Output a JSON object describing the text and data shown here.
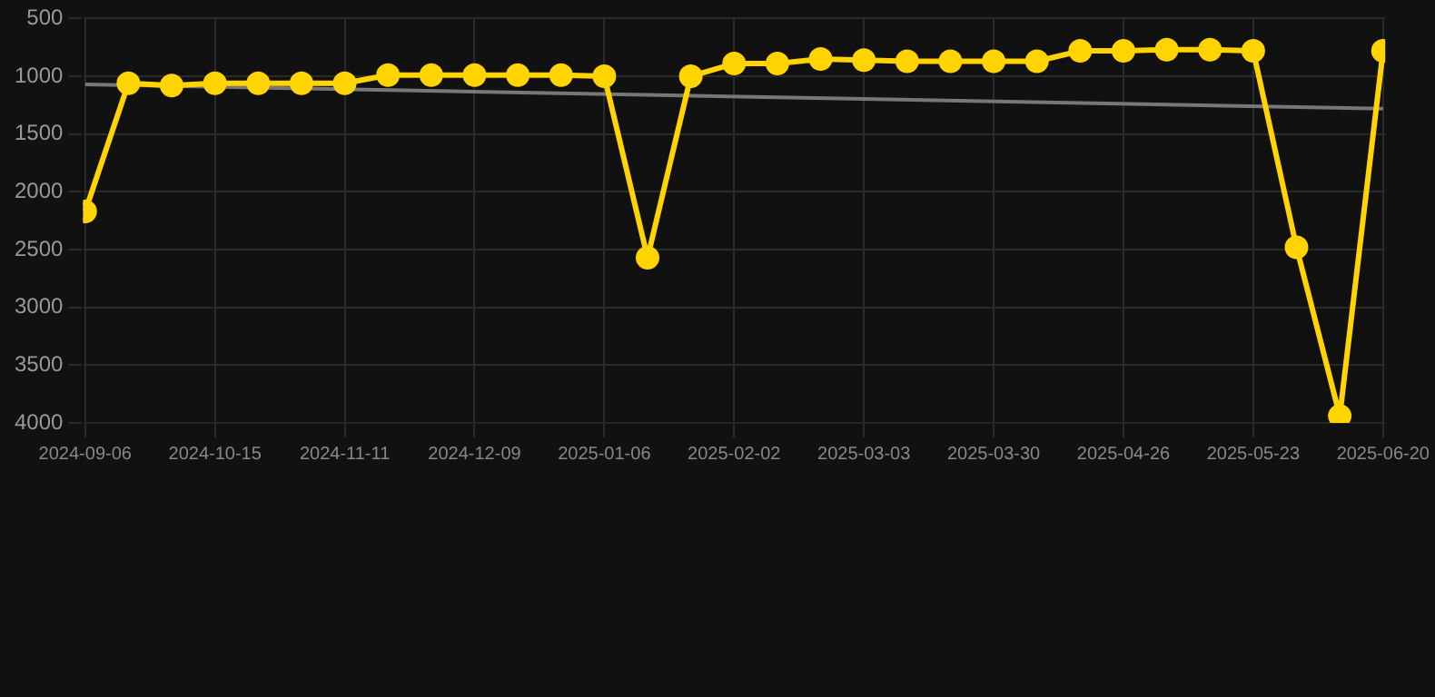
{
  "chart_data": {
    "type": "line",
    "categories": [
      "2024-09-06",
      null,
      null,
      "2024-10-15",
      null,
      null,
      "2024-11-11",
      null,
      null,
      "2024-12-09",
      null,
      null,
      "2025-01-06",
      null,
      null,
      "2025-02-02",
      null,
      null,
      "2025-03-03",
      null,
      null,
      "2025-03-30",
      null,
      null,
      "2025-04-26",
      null,
      null,
      "2025-05-23",
      null,
      null,
      "2025-06-20"
    ],
    "series": [
      {
        "color": "#ffd400",
        "marker": "circle",
        "values": [
          2170,
          1060,
          1080,
          1060,
          1060,
          1060,
          1060,
          990,
          990,
          990,
          990,
          990,
          1000,
          2570,
          1000,
          890,
          890,
          850,
          860,
          870,
          870,
          870,
          870,
          780,
          780,
          770,
          770,
          780,
          2480,
          3940,
          780
        ]
      },
      {
        "type": "line",
        "color": "#777777",
        "marker": "none",
        "values": [
          1070,
          null,
          null,
          null,
          null,
          null,
          null,
          null,
          null,
          null,
          null,
          null,
          null,
          null,
          null,
          null,
          null,
          null,
          null,
          null,
          null,
          null,
          null,
          null,
          null,
          null,
          null,
          null,
          null,
          null,
          1280
        ]
      }
    ],
    "ylim": [
      4000,
      500
    ],
    "yticks": [
      500,
      1000,
      1500,
      2000,
      2500,
      3000,
      3500,
      4000
    ],
    "grid": true
  }
}
